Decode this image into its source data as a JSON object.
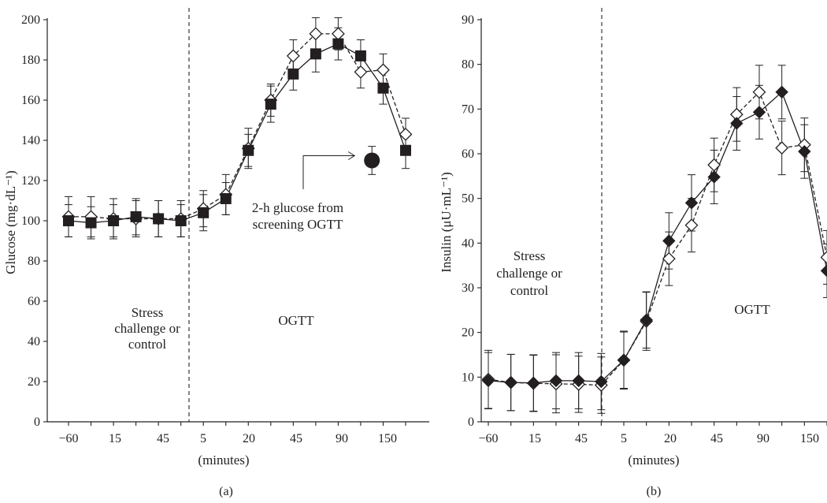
{
  "chart_data": [
    {
      "type": "line",
      "panel_label": "(a)",
      "title": "",
      "ylabel": "Glucose (mg·dL⁻¹)",
      "xlabel": "(minutes)",
      "ylim": [
        0,
        200
      ],
      "yticks": [
        "0",
        "20",
        "40",
        "60",
        "80",
        "100",
        "120",
        "140",
        "160",
        "180",
        "200"
      ],
      "xtick_labels": [
        "−60",
        "15",
        "45",
        "5",
        "20",
        "45",
        "90",
        "150"
      ],
      "grid": false,
      "legend": "none",
      "annotations": {
        "left_region": [
          "Stress",
          "challenge or",
          "control"
        ],
        "right_region": "OGTT",
        "screening_note": [
          "2-h glucose from",
          "screening OGTT"
        ]
      },
      "series": [
        {
          "marker": "open-diamond",
          "line_style": "dashed",
          "values": [
            102,
            102,
            101,
            101,
            101,
            101,
            106,
            113,
            136,
            160,
            182,
            193,
            193,
            174,
            175,
            143
          ],
          "error": [
            10,
            10,
            10,
            9,
            9,
            9,
            9,
            10,
            10,
            8,
            8,
            8,
            8,
            8,
            8,
            8
          ]
        },
        {
          "marker": "filled-square",
          "line_style": "solid",
          "values": [
            100,
            99,
            100,
            102,
            101,
            100,
            104,
            111,
            135,
            158,
            173,
            183,
            188,
            182,
            166,
            135
          ],
          "error": [
            8,
            8,
            8,
            9,
            9,
            8,
            9,
            8,
            8,
            9,
            8,
            9,
            8,
            8,
            8,
            9
          ]
        }
      ],
      "screening_point": {
        "x_index": 13.5,
        "value": 130,
        "error": 7
      }
    },
    {
      "type": "line",
      "panel_label": "(b)",
      "title": "",
      "ylabel": "Insulin (μU·mL⁻¹)",
      "xlabel": "(minutes)",
      "ylim": [
        0,
        90
      ],
      "yticks": [
        "0",
        "10",
        "20",
        "30",
        "40",
        "50",
        "60",
        "70",
        "80",
        "90"
      ],
      "xtick_labels": [
        "−60",
        "15",
        "45",
        "5",
        "20",
        "45",
        "90",
        "150"
      ],
      "grid": false,
      "legend": "none",
      "annotations": {
        "left_region": [
          "Stress",
          "challenge or",
          "control"
        ],
        "right_region": "OGTT"
      },
      "series": [
        {
          "marker": "open-diamond",
          "line_style": "dashed",
          "values": [
            9.5,
            8.8,
            8.6,
            8.5,
            8.4,
            8.2,
            13.8,
            22.5,
            36.5,
            44,
            57.5,
            68.8,
            73.8,
            61.3,
            62,
            36.8
          ],
          "error": [
            6.5,
            6.3,
            6.3,
            6.5,
            6.3,
            6.3,
            6.3,
            6.5,
            6.0,
            6.0,
            6.0,
            6.0,
            6.0,
            6.0,
            6.0,
            6.0
          ]
        },
        {
          "marker": "filled-diamond",
          "line_style": "solid",
          "values": [
            9.2,
            8.8,
            8.7,
            9.2,
            9.2,
            9,
            13.8,
            22.8,
            40.5,
            49,
            54.8,
            66.8,
            69.3,
            73.8,
            60.5,
            33.8
          ],
          "error": [
            6.3,
            6.3,
            6.3,
            6.3,
            6.3,
            6.3,
            6.5,
            6.3,
            6.3,
            6.3,
            6.0,
            6.0,
            6.0,
            6.0,
            6.0,
            6.0
          ]
        }
      ]
    }
  ]
}
